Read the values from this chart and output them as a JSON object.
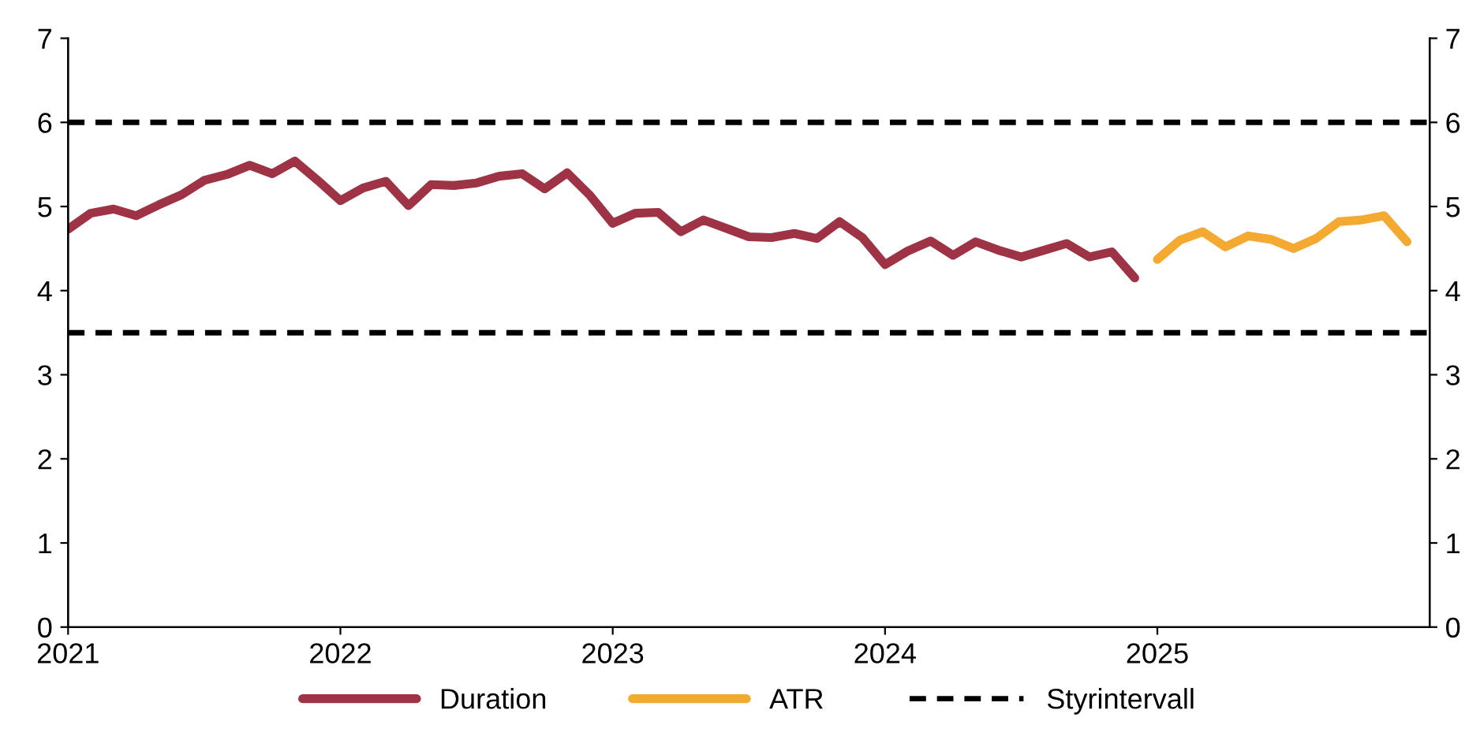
{
  "chart_data": {
    "type": "line",
    "xlim": [
      2021,
      2026
    ],
    "xticks": [
      2021,
      2022,
      2023,
      2024,
      2025
    ],
    "ylim": [
      0,
      7
    ],
    "yticks": [
      0,
      1,
      2,
      3,
      4,
      5,
      6,
      7
    ],
    "y2lim": [
      0,
      7
    ],
    "y2ticks": [
      0,
      1,
      2,
      3,
      4,
      5,
      6,
      7
    ],
    "grid": false,
    "legend": "bottom",
    "marker": "none",
    "line_style": "solid",
    "series": [
      {
        "name": "Duration",
        "color": "#9e3346",
        "x": [
          2021.0,
          2021.083,
          2021.167,
          2021.25,
          2021.333,
          2021.417,
          2021.5,
          2021.583,
          2021.667,
          2021.75,
          2021.833,
          2021.917,
          2022.0,
          2022.083,
          2022.167,
          2022.25,
          2022.333,
          2022.417,
          2022.5,
          2022.583,
          2022.667,
          2022.75,
          2022.833,
          2022.917,
          2023.0,
          2023.083,
          2023.167,
          2023.25,
          2023.333,
          2023.417,
          2023.5,
          2023.583,
          2023.667,
          2023.75,
          2023.833,
          2023.917,
          2024.0,
          2024.083,
          2024.167,
          2024.25,
          2024.333,
          2024.417,
          2024.5,
          2024.583,
          2024.667,
          2024.75,
          2024.833,
          2024.917
        ],
        "values": [
          4.73,
          4.92,
          4.97,
          4.89,
          5.02,
          5.14,
          5.31,
          5.38,
          5.49,
          5.39,
          5.54,
          5.31,
          5.07,
          5.22,
          5.3,
          5.01,
          5.26,
          5.25,
          5.28,
          5.36,
          5.39,
          5.21,
          5.4,
          5.13,
          4.8,
          4.92,
          4.93,
          4.7,
          4.84,
          4.74,
          4.64,
          4.63,
          4.68,
          4.62,
          4.82,
          4.63,
          4.31,
          4.47,
          4.59,
          4.42,
          4.58,
          4.48,
          4.4,
          4.48,
          4.56,
          4.4,
          4.46,
          4.15
        ]
      },
      {
        "name": "ATR",
        "color": "#f4a930",
        "x": [
          2025.0,
          2025.083,
          2025.167,
          2025.25,
          2025.333,
          2025.417,
          2025.5,
          2025.583,
          2025.667,
          2025.75,
          2025.833,
          2025.917
        ],
        "values": [
          4.37,
          4.6,
          4.7,
          4.52,
          4.65,
          4.61,
          4.5,
          4.62,
          4.82,
          4.84,
          4.89,
          4.58
        ]
      }
    ],
    "ref_lines": [
      {
        "axis": "y",
        "value": 6,
        "label": "Styrintervall",
        "color": "#000000",
        "line_style": "dashed"
      },
      {
        "axis": "y",
        "value": 3.5,
        "color": "#000000",
        "line_style": "dashed"
      }
    ]
  }
}
